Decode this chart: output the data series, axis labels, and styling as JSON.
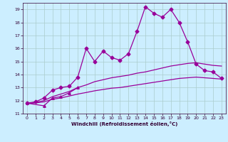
{
  "xlabel": "Windchill (Refroidissement éolien,°C)",
  "bg_color": "#cceeff",
  "grid_color": "#aacccc",
  "line_color": "#990099",
  "xlim": [
    -0.5,
    23.5
  ],
  "ylim": [
    11,
    19.5
  ],
  "yticks": [
    11,
    12,
    13,
    14,
    15,
    16,
    17,
    18,
    19
  ],
  "xticks": [
    0,
    1,
    2,
    3,
    4,
    5,
    6,
    7,
    8,
    9,
    10,
    11,
    12,
    13,
    14,
    15,
    16,
    17,
    18,
    19,
    20,
    21,
    22,
    23
  ],
  "series": [
    {
      "x": [
        0,
        1,
        2,
        3,
        4,
        5,
        6,
        7,
        8,
        9,
        10,
        11,
        12,
        13,
        14,
        15,
        16,
        17,
        18,
        19,
        20,
        21,
        22,
        23
      ],
      "y": [
        11.8,
        11.9,
        12.2,
        12.8,
        13.0,
        13.1,
        13.8,
        16.0,
        15.0,
        15.8,
        15.3,
        15.1,
        15.6,
        17.3,
        19.2,
        18.7,
        18.4,
        19.0,
        18.0,
        16.5,
        14.8,
        14.3,
        14.2,
        13.7
      ],
      "marker": "D",
      "markersize": 2.5,
      "linewidth": 0.9
    },
    {
      "x": [
        0,
        1,
        2,
        3,
        4,
        5,
        6,
        7,
        8,
        9,
        10,
        11,
        12,
        13,
        14,
        15,
        16,
        17,
        18,
        19,
        20,
        21,
        22,
        23
      ],
      "y": [
        11.8,
        11.85,
        12.0,
        12.3,
        12.5,
        12.7,
        13.0,
        13.2,
        13.45,
        13.6,
        13.75,
        13.85,
        13.95,
        14.1,
        14.2,
        14.35,
        14.5,
        14.65,
        14.75,
        14.85,
        14.9,
        14.8,
        14.7,
        14.65
      ],
      "marker": null,
      "markersize": 0,
      "linewidth": 0.9
    },
    {
      "x": [
        0,
        1,
        2,
        3,
        4,
        5,
        6,
        7,
        8,
        9,
        10,
        11,
        12,
        13,
        14,
        15,
        16,
        17,
        18,
        19,
        20,
        21,
        22,
        23
      ],
      "y": [
        11.8,
        11.82,
        11.9,
        12.1,
        12.2,
        12.35,
        12.5,
        12.62,
        12.75,
        12.85,
        12.95,
        13.0,
        13.1,
        13.2,
        13.3,
        13.4,
        13.5,
        13.6,
        13.7,
        13.75,
        13.8,
        13.75,
        13.7,
        13.65
      ],
      "marker": null,
      "markersize": 0,
      "linewidth": 0.9
    },
    {
      "x": [
        0,
        2,
        3,
        4,
        5,
        6
      ],
      "y": [
        11.8,
        11.6,
        12.2,
        12.3,
        12.6,
        13.0
      ],
      "marker": "^",
      "markersize": 2.5,
      "linewidth": 0.9
    }
  ]
}
